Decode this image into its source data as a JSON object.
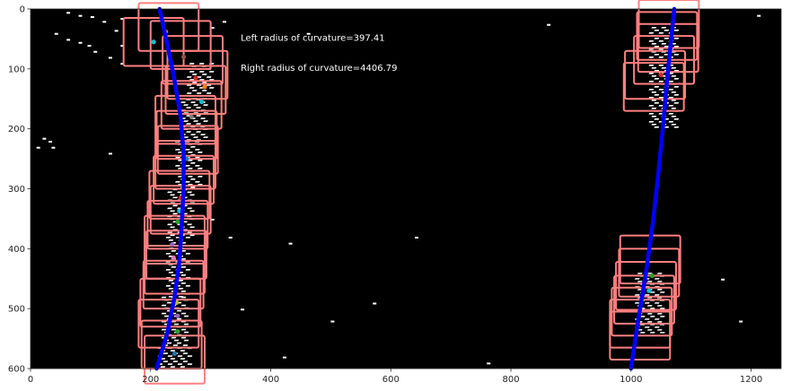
{
  "chart_data": {
    "type": "image-plot",
    "title": "",
    "xlabel": "",
    "ylabel": "",
    "xlim": [
      0,
      1250
    ],
    "ylim": [
      600,
      0
    ],
    "y_axis_inverted": true,
    "xticks": [
      0,
      200,
      400,
      600,
      800,
      1000,
      1200
    ],
    "yticks": [
      0,
      100,
      200,
      300,
      400,
      500,
      600
    ],
    "background_color": "#000000",
    "annotations": [
      {
        "text": "Left radius of curvature=397.41",
        "x": 350,
        "y": 47
      },
      {
        "text": "Right radius of curvature=4406.79",
        "x": 350,
        "y": 97
      }
    ],
    "fit_lines": [
      {
        "color": "#0000ff",
        "points": [
          [
            210,
            600
          ],
          [
            228,
            540
          ],
          [
            240,
            480
          ],
          [
            248,
            420
          ],
          [
            252,
            360
          ],
          [
            255,
            300
          ],
          [
            255,
            240
          ],
          [
            250,
            180
          ],
          [
            240,
            120
          ],
          [
            228,
            60
          ],
          [
            215,
            0
          ]
        ]
      },
      {
        "color": "#0000ff",
        "points": [
          [
            1000,
            600
          ],
          [
            1012,
            520
          ],
          [
            1025,
            440
          ],
          [
            1036,
            360
          ],
          [
            1045,
            280
          ],
          [
            1053,
            200
          ],
          [
            1060,
            120
          ],
          [
            1066,
            60
          ],
          [
            1072,
            0
          ]
        ]
      }
    ],
    "search_windows": {
      "color": "#ff8080",
      "left": [
        [
          240,
          585
        ],
        [
          235,
          560
        ],
        [
          230,
          525
        ],
        [
          233,
          490
        ],
        [
          238,
          460
        ],
        [
          240,
          435
        ],
        [
          243,
          410
        ],
        [
          240,
          385
        ],
        [
          245,
          360
        ],
        [
          250,
          335
        ],
        [
          248,
          310
        ],
        [
          255,
          285
        ],
        [
          258,
          260
        ],
        [
          262,
          235
        ],
        [
          260,
          210
        ],
        [
          258,
          185
        ],
        [
          268,
          160
        ],
        [
          275,
          135
        ],
        [
          278,
          110
        ],
        [
          270,
          85
        ],
        [
          250,
          60
        ],
        [
          205,
          55
        ],
        [
          230,
          30
        ]
      ],
      "right": [
        [
          1015,
          545
        ],
        [
          1015,
          525
        ],
        [
          1018,
          505
        ],
        [
          1022,
          485
        ],
        [
          1025,
          462
        ],
        [
          1030,
          440
        ],
        [
          1032,
          418
        ],
        [
          1038,
          130
        ],
        [
          1040,
          110
        ],
        [
          1055,
          85
        ],
        [
          1062,
          65
        ],
        [
          1060,
          45
        ],
        [
          1063,
          25
        ]
      ]
    },
    "centroids": [
      {
        "x": 240,
        "y": 575,
        "color": "#1f77b4"
      },
      {
        "x": 245,
        "y": 538,
        "color": "#2ca02c"
      },
      {
        "x": 245,
        "y": 512,
        "color": "#9467bd"
      },
      {
        "x": 243,
        "y": 490,
        "color": "#bcbd22"
      },
      {
        "x": 238,
        "y": 415,
        "color": "#e377c2"
      },
      {
        "x": 236,
        "y": 393,
        "color": "#9467bd"
      },
      {
        "x": 245,
        "y": 355,
        "color": "#2ca02c"
      },
      {
        "x": 248,
        "y": 337,
        "color": "#17becf"
      },
      {
        "x": 250,
        "y": 315,
        "color": "#d62728"
      },
      {
        "x": 260,
        "y": 250,
        "color": "#1f77b4"
      },
      {
        "x": 268,
        "y": 180,
        "color": "#7f7f7f"
      },
      {
        "x": 285,
        "y": 155,
        "color": "#17becf"
      },
      {
        "x": 290,
        "y": 130,
        "color": "#ff7f0e"
      },
      {
        "x": 275,
        "y": 115,
        "color": "#d62728"
      },
      {
        "x": 255,
        "y": 80,
        "color": "#8c564b"
      },
      {
        "x": 205,
        "y": 55,
        "color": "#17becf"
      },
      {
        "x": 225,
        "y": 38,
        "color": "#ff7f0e"
      },
      {
        "x": 1030,
        "y": 470,
        "color": "#17becf"
      },
      {
        "x": 1035,
        "y": 445,
        "color": "#2ca02c"
      },
      {
        "x": 1050,
        "y": 110,
        "color": "#d62728"
      }
    ],
    "lane_pixel_blobs": [
      {
        "x0": 210,
        "x1": 265,
        "y0": 560,
        "y1": 600
      },
      {
        "x0": 215,
        "x1": 260,
        "y0": 480,
        "y1": 560
      },
      {
        "x0": 222,
        "x1": 262,
        "y0": 380,
        "y1": 480
      },
      {
        "x0": 228,
        "x1": 268,
        "y0": 300,
        "y1": 380
      },
      {
        "x0": 240,
        "x1": 280,
        "y0": 220,
        "y1": 300
      },
      {
        "x0": 250,
        "x1": 290,
        "y0": 150,
        "y1": 220
      },
      {
        "x0": 258,
        "x1": 300,
        "y0": 90,
        "y1": 150
      },
      {
        "x0": 1005,
        "x1": 1050,
        "y0": 440,
        "y1": 540
      },
      {
        "x0": 1030,
        "x1": 1075,
        "y0": 30,
        "y1": 200
      }
    ],
    "noise_specks": [
      [
        60,
        5
      ],
      [
        80,
        10
      ],
      [
        100,
        12
      ],
      [
        120,
        20
      ],
      [
        140,
        35
      ],
      [
        150,
        15
      ],
      [
        60,
        50
      ],
      [
        80,
        55
      ],
      [
        95,
        60
      ],
      [
        105,
        70
      ],
      [
        130,
        80
      ],
      [
        150,
        90
      ],
      [
        10,
        230
      ],
      [
        20,
        215
      ],
      [
        30,
        220
      ],
      [
        35,
        230
      ],
      [
        130,
        240
      ],
      [
        300,
        350
      ],
      [
        330,
        380
      ],
      [
        430,
        390
      ],
      [
        640,
        380
      ],
      [
        760,
        590
      ],
      [
        570,
        490
      ],
      [
        500,
        520
      ],
      [
        420,
        580
      ],
      [
        350,
        500
      ],
      [
        1150,
        450
      ],
      [
        1180,
        520
      ],
      [
        1210,
        10
      ],
      [
        460,
        40
      ],
      [
        860,
        25
      ],
      [
        300,
        30
      ],
      [
        320,
        20
      ],
      [
        40,
        40
      ],
      [
        150,
        60
      ]
    ]
  }
}
